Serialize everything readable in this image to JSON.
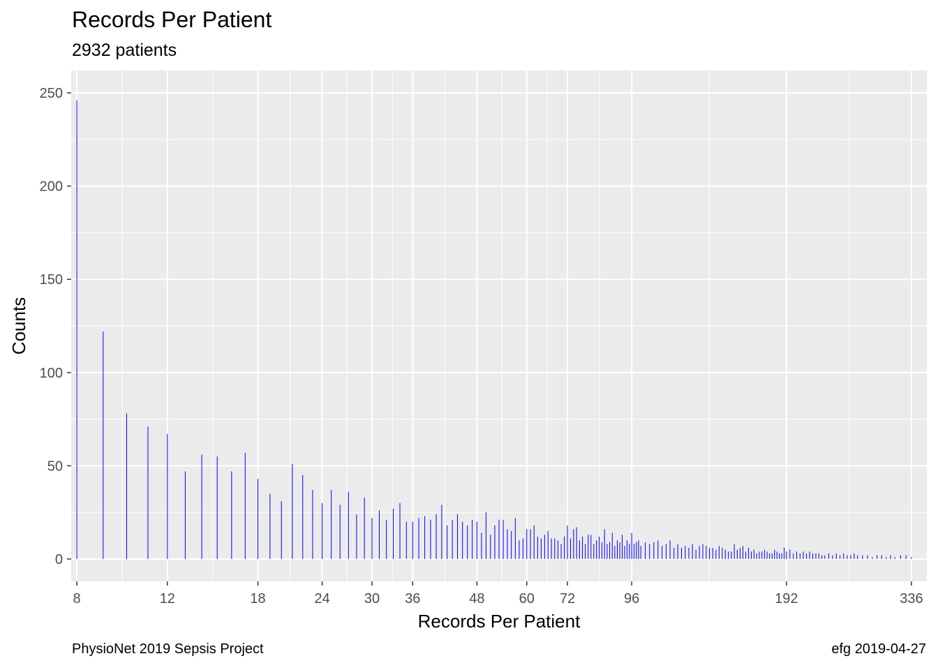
{
  "title": "Records Per Patient",
  "subtitle": "2932 patients",
  "caption_left": "PhysioNet 2019 Sepsis Project",
  "caption_right": "efg 2019-04-27",
  "chart_data": {
    "type": "bar",
    "x_scale": "log",
    "xlabel": "Records Per Patient",
    "ylabel": "Counts",
    "xlim": [
      7.8,
      360
    ],
    "ylim": [
      -12,
      262
    ],
    "x_ticks": [
      8,
      12,
      18,
      24,
      30,
      36,
      48,
      60,
      72,
      96,
      192,
      336
    ],
    "y_ticks": [
      0,
      50,
      100,
      150,
      200,
      250
    ],
    "grid": true,
    "bar_color": "#0000ff",
    "panel_background": "#ebebeb",
    "x": [
      8,
      9,
      10,
      11,
      12,
      13,
      14,
      15,
      16,
      17,
      18,
      19,
      20,
      21,
      22,
      23,
      24,
      25,
      26,
      27,
      28,
      29,
      30,
      31,
      32,
      33,
      34,
      35,
      36,
      37,
      38,
      39,
      40,
      41,
      42,
      43,
      44,
      45,
      46,
      47,
      48,
      49,
      50,
      51,
      52,
      53,
      54,
      55,
      56,
      57,
      58,
      59,
      60,
      61,
      62,
      63,
      64,
      65,
      66,
      67,
      68,
      69,
      70,
      71,
      72,
      73,
      74,
      75,
      76,
      77,
      78,
      79,
      80,
      81,
      82,
      83,
      84,
      85,
      86,
      87,
      88,
      89,
      90,
      91,
      92,
      93,
      94,
      95,
      96,
      97,
      98,
      99,
      100,
      102,
      104,
      106,
      108,
      110,
      112,
      114,
      116,
      118,
      120,
      122,
      124,
      126,
      128,
      130,
      132,
      134,
      136,
      138,
      140,
      142,
      144,
      146,
      148,
      150,
      152,
      154,
      156,
      158,
      160,
      162,
      164,
      166,
      168,
      170,
      172,
      174,
      176,
      178,
      180,
      182,
      184,
      186,
      188,
      190,
      192,
      195,
      198,
      201,
      204,
      207,
      210,
      213,
      216,
      219,
      222,
      225,
      228,
      232,
      236,
      240,
      244,
      248,
      252,
      256,
      260,
      264,
      270,
      276,
      282,
      288,
      294,
      300,
      306,
      312,
      320,
      328,
      336
    ],
    "values": [
      246,
      122,
      78,
      71,
      67,
      47,
      56,
      55,
      47,
      57,
      43,
      35,
      31,
      51,
      45,
      37,
      30,
      37,
      29,
      36,
      24,
      33,
      22,
      26,
      21,
      27,
      30,
      20,
      20,
      22,
      23,
      21,
      24,
      29,
      18,
      21,
      24,
      20,
      18,
      21,
      20,
      14,
      25,
      13,
      18,
      21,
      21,
      16,
      15,
      22,
      10,
      11,
      16,
      16,
      18,
      12,
      11,
      13,
      15,
      11,
      11,
      10,
      8,
      12,
      18,
      11,
      16,
      17,
      10,
      12,
      8,
      13,
      13,
      8,
      10,
      12,
      9,
      16,
      8,
      9,
      14,
      7,
      10,
      9,
      13,
      7,
      10,
      8,
      14,
      8,
      9,
      10,
      7,
      9,
      8,
      9,
      10,
      7,
      8,
      10,
      6,
      8,
      6,
      7,
      6,
      8,
      5,
      7,
      8,
      7,
      6,
      6,
      5,
      7,
      6,
      5,
      4,
      4,
      8,
      5,
      6,
      7,
      4,
      6,
      4,
      5,
      3,
      4,
      4,
      5,
      4,
      3,
      3,
      5,
      4,
      3,
      3,
      6,
      4,
      5,
      3,
      4,
      3,
      4,
      3,
      4,
      3,
      3,
      3,
      2,
      2,
      3,
      2,
      3,
      2,
      3,
      2,
      2,
      3,
      2,
      2,
      2,
      1,
      2,
      2,
      1,
      2,
      1,
      2,
      2,
      1
    ]
  }
}
